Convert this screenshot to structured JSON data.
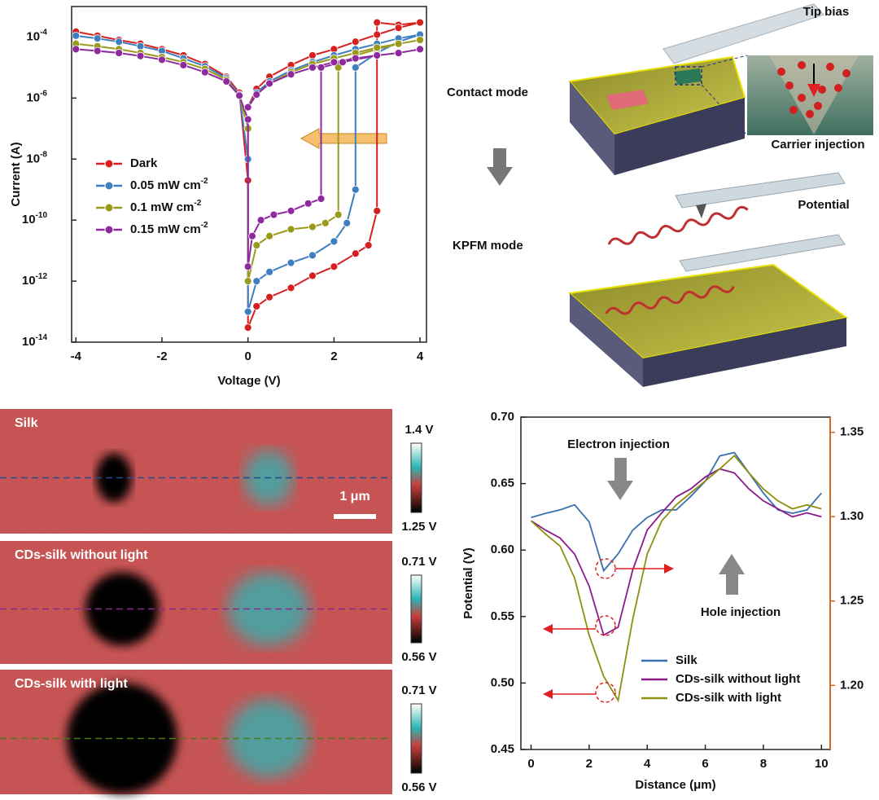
{
  "chart_data": [
    {
      "type": "line",
      "markers": true,
      "x_label": "Voltage (V)",
      "y_label": "Current (A)",
      "xlim": [
        -4.1,
        4.15
      ],
      "ylim": [
        1e-14,
        0.001
      ],
      "ylog": true,
      "legend": "lower left",
      "xticks": [
        -4,
        -2,
        0,
        2,
        4
      ],
      "yticks": [
        {
          "value": 1e-14,
          "label": "10",
          "exponent": "-14"
        },
        {
          "value": 1e-12,
          "label": "10",
          "exponent": "-12"
        },
        {
          "value": 1e-10,
          "label": "10",
          "exponent": "-10"
        },
        {
          "value": 1e-08,
          "label": "10",
          "exponent": "-8"
        },
        {
          "value": 1e-06,
          "label": "10",
          "exponent": "-6"
        },
        {
          "value": 0.0001,
          "label": "10",
          "exponent": "-4"
        }
      ],
      "series": [
        {
          "name": "Dark",
          "color": "#d62020",
          "x": [
            -4,
            -3.5,
            -3,
            -2.5,
            -2,
            -1.5,
            -1,
            -0.5,
            -0.2,
            0,
            0,
            0.2,
            0.5,
            1,
            1.5,
            2,
            2.5,
            2.8,
            3,
            3,
            3.5,
            4,
            3.5,
            3,
            2.5,
            2,
            1.5,
            1,
            0.5,
            0.2,
            0
          ],
          "values": [
            0.00015,
            0.00011,
            8e-05,
            6e-05,
            4e-05,
            2.5e-05,
            1.3e-05,
            5e-06,
            1.5e-06,
            2e-09,
            3e-14,
            1.5e-13,
            3e-13,
            6e-13,
            1.5e-12,
            3e-12,
            8e-12,
            1.5e-11,
            2e-10,
            0.0003,
            0.00025,
            0.0003,
            0.0002,
            0.00012,
            7e-05,
            4e-05,
            2.5e-05,
            1.2e-05,
            5e-06,
            2e-06,
            5e-07
          ]
        },
        {
          "name": "0.05 mW cm",
          "name_superscript": "-2",
          "color": "#3f7fbf",
          "x": [
            -4,
            -3.5,
            -3,
            -2.5,
            -2,
            -1.5,
            -1,
            -0.5,
            -0.2,
            0,
            0,
            0.2,
            0.5,
            1,
            1.5,
            2,
            2.3,
            2.5,
            2.5,
            3,
            3.5,
            4,
            3.5,
            3,
            2.5,
            2,
            1.5,
            1,
            0.5,
            0.2,
            0
          ],
          "values": [
            0.00011,
            9e-05,
            7e-05,
            5e-05,
            3.5e-05,
            2e-05,
            1.1e-05,
            4.5e-06,
            1.3e-06,
            1e-08,
            1e-13,
            1e-12,
            2e-12,
            4e-12,
            7e-12,
            2e-11,
            8e-11,
            1e-09,
            1e-05,
            3e-05,
            7e-05,
            0.00012,
            9e-05,
            6e-05,
            4e-05,
            2.5e-05,
            1.5e-05,
            8e-06,
            3.5e-06,
            1.5e-06,
            5e-07
          ]
        },
        {
          "name": "0.1 mW cm",
          "name_superscript": "-2",
          "color": "#9a9a1a",
          "x": [
            -4,
            -3.5,
            -3,
            -2.5,
            -2,
            -1.5,
            -1,
            -0.5,
            -0.2,
            0,
            0,
            0.2,
            0.5,
            1,
            1.5,
            1.8,
            2.1,
            2.1,
            2.5,
            3,
            3.5,
            4,
            3.5,
            3,
            2.5,
            2,
            1.5,
            1,
            0.5,
            0.2,
            0
          ],
          "values": [
            6e-05,
            5e-05,
            4e-05,
            3e-05,
            2.2e-05,
            1.5e-05,
            9e-06,
            4e-06,
            1.2e-06,
            1e-07,
            1e-12,
            1.5e-11,
            3e-11,
            5e-11,
            6e-11,
            8e-11,
            1.5e-10,
            1e-05,
            2.5e-05,
            4e-05,
            6e-05,
            8e-05,
            6e-05,
            4.5e-05,
            3e-05,
            2e-05,
            1.3e-05,
            7e-06,
            3e-06,
            1.3e-06,
            5e-07
          ]
        },
        {
          "name": "0.15 mW cm",
          "name_superscript": "-2",
          "color": "#8e2a9e",
          "x": [
            -4,
            -3.5,
            -3,
            -2.5,
            -2,
            -1.5,
            -1,
            -0.5,
            -0.2,
            0,
            0,
            0.1,
            0.3,
            0.6,
            1,
            1.4,
            1.7,
            1.7,
            2.2,
            3,
            3.5,
            4,
            3.5,
            3,
            2.5,
            2,
            1.5,
            1,
            0.5,
            0.2,
            0
          ],
          "values": [
            4e-05,
            3.5e-05,
            3e-05,
            2.4e-05,
            1.8e-05,
            1.2e-05,
            7e-06,
            3.5e-06,
            1.2e-06,
            2e-07,
            3e-12,
            3e-11,
            1e-10,
            1.5e-10,
            2e-10,
            3.5e-10,
            5e-10,
            1e-05,
            1.5e-05,
            2.5e-05,
            3e-05,
            4e-05,
            3e-05,
            2.5e-05,
            2e-05,
            1.5e-05,
            1e-05,
            6e-06,
            3e-06,
            1.3e-06,
            5e-07
          ]
        }
      ]
    },
    {
      "type": "line",
      "markers": false,
      "x_label": "Distance (μm)",
      "y_label": "Potential (V)",
      "xlim": [
        -0.35,
        10.3
      ],
      "ylim": [
        0.45,
        0.7
      ],
      "y2lim": [
        1.162,
        1.359
      ],
      "y2_color": "#d2691e",
      "legend": "lower right",
      "xticks": [
        0,
        2,
        4,
        6,
        8,
        10
      ],
      "yticks": [
        0.45,
        {
          "value": 0.5,
          "label": "0.50"
        },
        0.55,
        {
          "value": 0.6,
          "label": "0.60"
        },
        0.65,
        {
          "value": 0.7,
          "label": "0.70"
        }
      ],
      "y2ticks": [
        {
          "value": 1.2,
          "label": "1.20"
        },
        1.25,
        {
          "value": 1.3,
          "label": "1.30"
        },
        1.35
      ],
      "annotations": [
        "Electron injection",
        "Hole injection"
      ],
      "x": [
        0,
        0.5,
        1,
        1.5,
        2,
        2.5,
        3,
        3.5,
        4,
        4.5,
        5,
        5.5,
        6,
        6.5,
        7,
        7.5,
        8,
        8.5,
        9,
        9.5,
        10
      ],
      "series": [
        {
          "name": "Silk",
          "color": "#3a6fb0",
          "axis": "y2",
          "values": [
            1.2995,
            1.302,
            1.304,
            1.307,
            1.297,
            1.268,
            1.278,
            1.292,
            1.2995,
            1.304,
            1.304,
            1.312,
            1.321,
            1.336,
            1.338,
            1.326,
            1.314,
            1.304,
            1.302,
            1.304,
            1.314
          ]
        },
        {
          "name": "CDs-silk without light",
          "color": "#8b1a8b",
          "values": [
            0.622,
            0.615,
            0.609,
            0.597,
            0.573,
            0.536,
            0.542,
            0.585,
            0.615,
            0.628,
            0.64,
            0.646,
            0.655,
            0.661,
            0.658,
            0.646,
            0.637,
            0.631,
            0.625,
            0.628,
            0.625
          ]
        },
        {
          "name": "CDs-silk with light",
          "color": "#8f8f0f",
          "values": [
            0.622,
            0.612,
            0.603,
            0.579,
            0.536,
            0.505,
            0.487,
            0.548,
            0.597,
            0.622,
            0.634,
            0.643,
            0.652,
            0.661,
            0.671,
            0.658,
            0.646,
            0.637,
            0.631,
            0.634,
            0.631
          ]
        }
      ]
    }
  ],
  "diagram": {
    "tip_bias": "Tip bias",
    "contact_mode": "Contact mode",
    "carrier_injection": "Carrier injection",
    "potential": "Potential",
    "kpfm_mode": "KPFM mode"
  },
  "kpfm": {
    "scale_bar": "1 μm",
    "panels": [
      {
        "title": "Silk",
        "colorbar_max": "1.4 V",
        "colorbar_min": "1.25 V"
      },
      {
        "title": "CDs-silk without light",
        "colorbar_max": "0.71 V",
        "colorbar_min": "0.56 V"
      },
      {
        "title": "CDs-silk with light",
        "colorbar_max": "0.71 V",
        "colorbar_min": "0.56 V"
      }
    ]
  }
}
